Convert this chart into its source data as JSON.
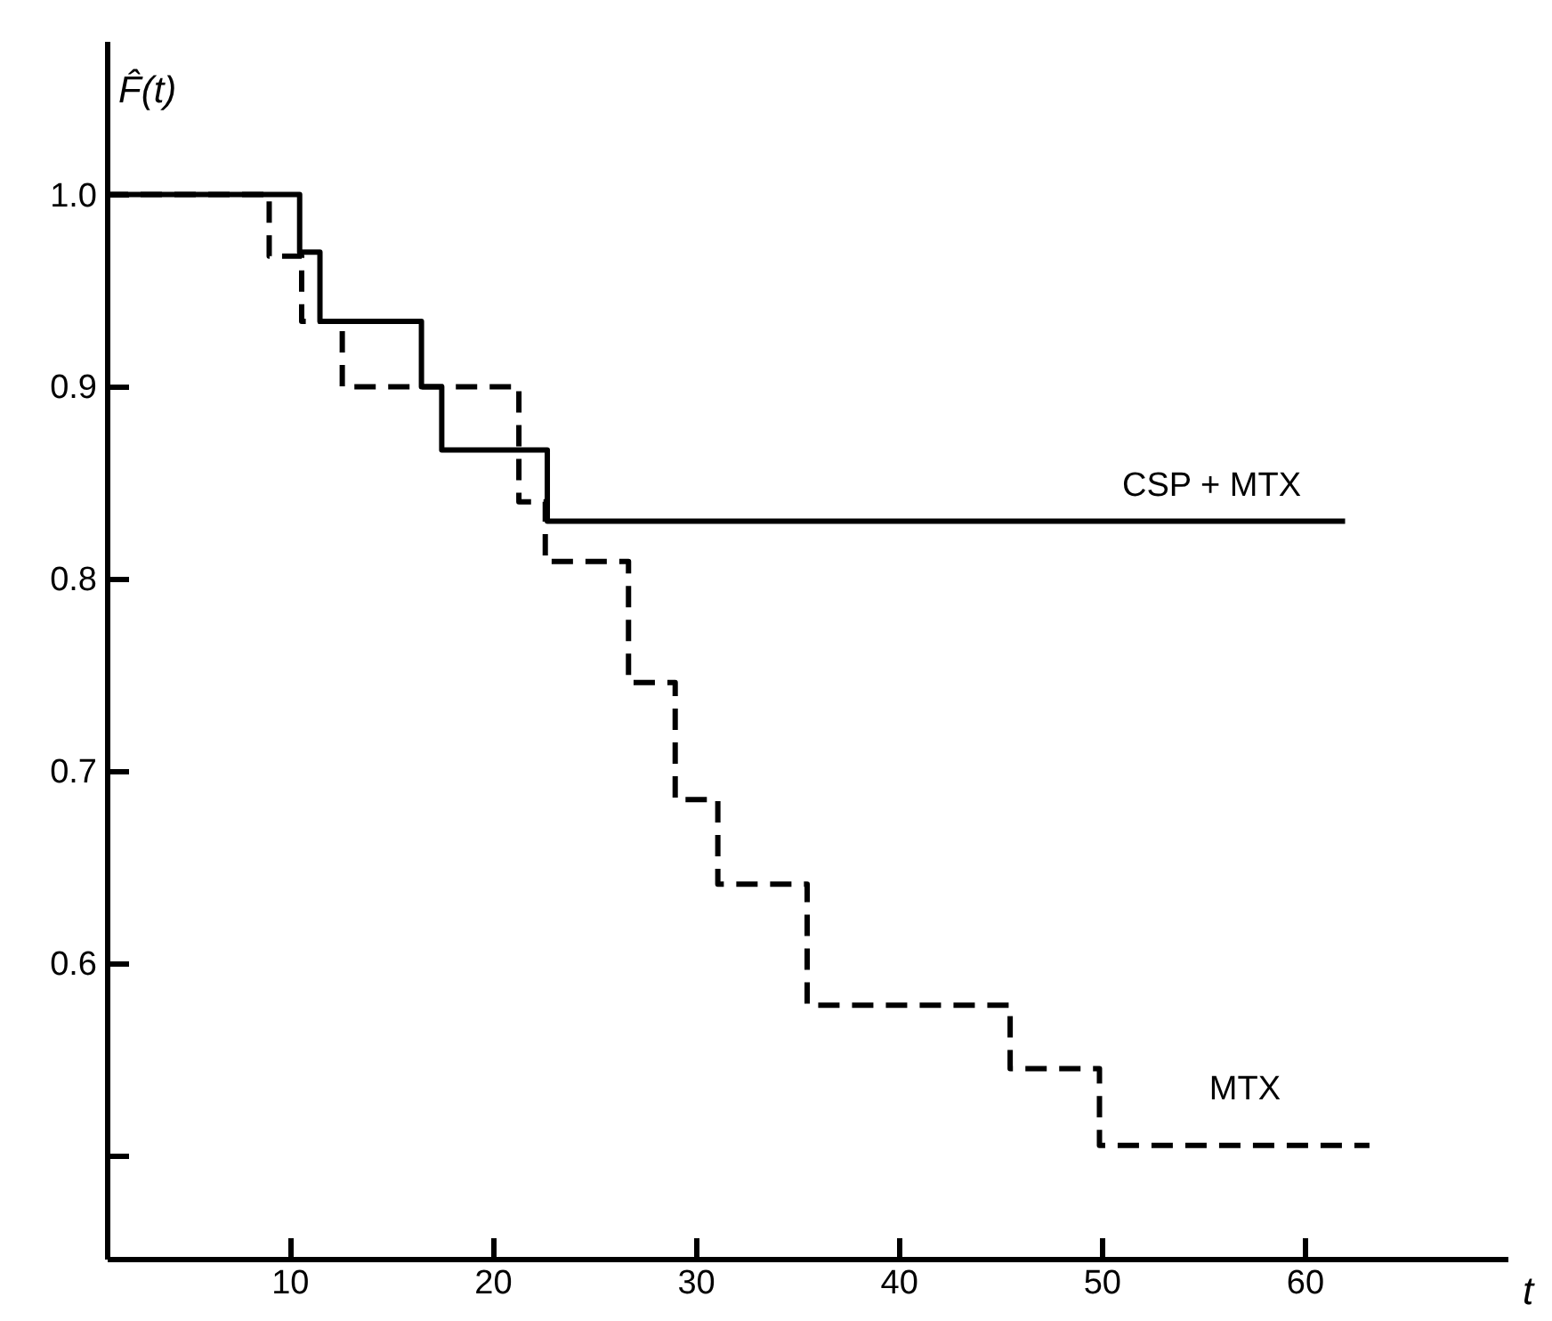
{
  "chart_data": {
    "type": "step",
    "ylabel": "F̂(t)",
    "xlabel": "t",
    "xlim": [
      1,
      70
    ],
    "xticks": [
      10,
      20,
      30,
      40,
      50,
      60
    ],
    "ylim": [
      0.446,
      1.08
    ],
    "yticks": [
      {
        "value": 0.5,
        "label": null
      },
      {
        "value": 0.6,
        "label": "0.6"
      },
      {
        "value": 0.7,
        "label": "0.7"
      },
      {
        "value": 0.8,
        "label": "0.8"
      },
      {
        "value": 0.9,
        "label": "0.9"
      },
      {
        "value": 1.0,
        "label": "1.0"
      }
    ],
    "grid": false,
    "marker": "none",
    "series": [
      {
        "name": "CSP + MTX",
        "color": "#000000",
        "line_style": "solid",
        "x": [
          1,
          10.5,
          11.5,
          16.5,
          17.5,
          22.7,
          62
        ],
        "values": [
          1.0,
          0.97,
          0.934,
          0.9,
          0.867,
          0.83,
          0.83
        ]
      },
      {
        "name": "MTX",
        "color": "#000000",
        "line_style": "dashed",
        "x": [
          1,
          9,
          10.6,
          12.6,
          21.3,
          22.6,
          26.7,
          29,
          31.1,
          35.5,
          45.5,
          49.9,
          63.2
        ],
        "values": [
          1.0,
          0.968,
          0.934,
          0.9,
          0.84,
          0.809,
          0.746,
          0.685,
          0.641,
          0.578,
          0.545,
          0.505,
          0.505
        ]
      }
    ]
  }
}
